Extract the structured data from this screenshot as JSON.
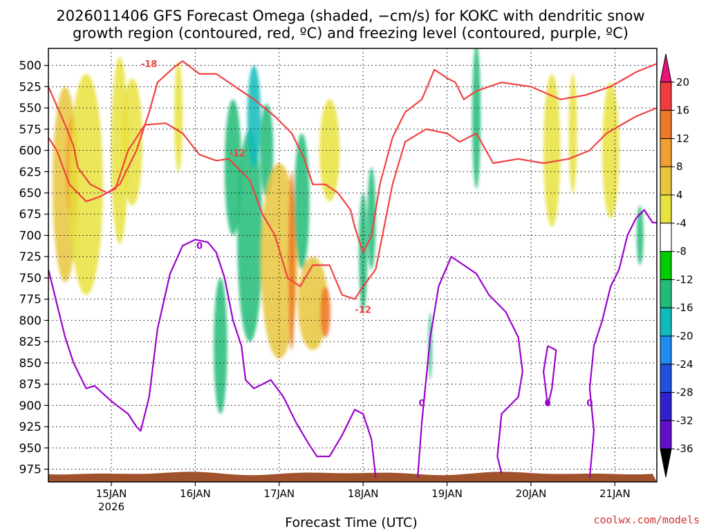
{
  "chart_data": {
    "type": "heatmap",
    "title_lines": [
      "2026011406 GFS Forecast Omega (shaded, −cm/s) for KOKC with dendritic snow",
      "growth region (contoured, red, ºC) and freezing level (contoured, purple, ºC)"
    ],
    "xlabel": "Forecast Time (UTC)",
    "ylabel": "",
    "credit": "coolwx.com/models",
    "x_range_days": [
      0,
      7.25
    ],
    "x_ticks": [
      {
        "day": 0.75,
        "label": "15JAN",
        "sublabel": "2026"
      },
      {
        "day": 1.75,
        "label": "16JAN",
        "sublabel": ""
      },
      {
        "day": 2.75,
        "label": "17JAN",
        "sublabel": ""
      },
      {
        "day": 3.75,
        "label": "18JAN",
        "sublabel": ""
      },
      {
        "day": 4.75,
        "label": "19JAN",
        "sublabel": ""
      },
      {
        "day": 5.75,
        "label": "20JAN",
        "sublabel": ""
      },
      {
        "day": 6.75,
        "label": "21JAN",
        "sublabel": ""
      }
    ],
    "y_range_hpa": [
      480,
      990
    ],
    "y_ticks": [
      500,
      525,
      550,
      575,
      600,
      625,
      650,
      675,
      700,
      725,
      750,
      775,
      800,
      825,
      850,
      875,
      900,
      925,
      950,
      975
    ],
    "grid": true,
    "colorbar": {
      "levels": [
        20,
        16,
        12,
        8,
        4,
        -4,
        -8,
        -12,
        -16,
        -20,
        -24,
        -28,
        -32,
        -36
      ],
      "colors": [
        "#e8127a",
        "#f03c3c",
        "#f07828",
        "#f0a030",
        "#e8c63c",
        "#e8e23c",
        "#ffffff",
        "#00cc00",
        "#22bb77",
        "#11bbbb",
        "#1e8cf0",
        "#2050e0",
        "#3020d0",
        "#6010c8",
        "#9a00cc",
        "#a0a0a0",
        "#000000"
      ]
    },
    "omega_blobs": [
      {
        "day": 0.2,
        "p": 640,
        "dd": 0.15,
        "dp": 230,
        "level": 8
      },
      {
        "day": 0.28,
        "p": 620,
        "dd": 0.07,
        "dp": 120,
        "level": 12
      },
      {
        "day": 0.45,
        "p": 640,
        "dd": 0.2,
        "dp": 260,
        "level": 4
      },
      {
        "day": 0.85,
        "p": 600,
        "dd": 0.1,
        "dp": 220,
        "level": 4
      },
      {
        "day": 1.0,
        "p": 590,
        "dd": 0.12,
        "dp": 150,
        "level": 4
      },
      {
        "day": 1.55,
        "p": 560,
        "dd": 0.05,
        "dp": 130,
        "level": 4
      },
      {
        "day": 2.05,
        "p": 830,
        "dd": 0.08,
        "dp": 160,
        "level": -8
      },
      {
        "day": 2.2,
        "p": 620,
        "dd": 0.1,
        "dp": 160,
        "level": -8
      },
      {
        "day": 2.4,
        "p": 700,
        "dd": 0.15,
        "dp": 250,
        "level": -8
      },
      {
        "day": 2.45,
        "p": 560,
        "dd": 0.08,
        "dp": 120,
        "level": -12
      },
      {
        "day": 2.6,
        "p": 600,
        "dd": 0.08,
        "dp": 110,
        "level": -8
      },
      {
        "day": 2.75,
        "p": 730,
        "dd": 0.22,
        "dp": 230,
        "level": 8
      },
      {
        "day": 2.9,
        "p": 730,
        "dd": 0.04,
        "dp": 210,
        "level": 16
      },
      {
        "day": 3.02,
        "p": 660,
        "dd": 0.09,
        "dp": 160,
        "level": -8
      },
      {
        "day": 3.15,
        "p": 780,
        "dd": 0.18,
        "dp": 110,
        "level": 8
      },
      {
        "day": 3.3,
        "p": 790,
        "dd": 0.06,
        "dp": 60,
        "level": 16
      },
      {
        "day": 3.35,
        "p": 600,
        "dd": 0.12,
        "dp": 120,
        "level": 4
      },
      {
        "day": 3.75,
        "p": 720,
        "dd": 0.05,
        "dp": 140,
        "level": -8
      },
      {
        "day": 3.85,
        "p": 680,
        "dd": 0.05,
        "dp": 120,
        "level": -8
      },
      {
        "day": 4.55,
        "p": 830,
        "dd": 0.02,
        "dp": 80,
        "level": -8
      },
      {
        "day": 5.1,
        "p": 560,
        "dd": 0.05,
        "dp": 170,
        "level": -8
      },
      {
        "day": 6.0,
        "p": 600,
        "dd": 0.1,
        "dp": 180,
        "level": 4
      },
      {
        "day": 6.25,
        "p": 580,
        "dd": 0.05,
        "dp": 140,
        "level": 4
      },
      {
        "day": 6.7,
        "p": 600,
        "dd": 0.1,
        "dp": 160,
        "level": 4
      },
      {
        "day": 7.05,
        "p": 700,
        "dd": 0.04,
        "dp": 70,
        "level": -8
      }
    ],
    "dsg_contours": [
      {
        "label": "-18",
        "label_at": {
          "day": 1.2,
          "p": 498
        },
        "points": [
          [
            0,
            525
          ],
          [
            0.2,
            570
          ],
          [
            0.3,
            595
          ],
          [
            0.35,
            620
          ],
          [
            0.5,
            640
          ],
          [
            0.7,
            650
          ],
          [
            0.85,
            640
          ],
          [
            1.05,
            600
          ],
          [
            1.2,
            555
          ],
          [
            1.3,
            520
          ],
          [
            1.5,
            502
          ],
          [
            1.6,
            495
          ],
          [
            1.8,
            510
          ],
          [
            2.0,
            510
          ],
          [
            2.15,
            520
          ],
          [
            2.45,
            540
          ],
          [
            2.7,
            560
          ],
          [
            2.9,
            580
          ],
          [
            3.05,
            610
          ],
          [
            3.15,
            640
          ],
          [
            3.3,
            640
          ],
          [
            3.45,
            650
          ],
          [
            3.6,
            670
          ],
          [
            3.65,
            690
          ],
          [
            3.75,
            720
          ],
          [
            3.85,
            700
          ],
          [
            3.95,
            640
          ],
          [
            4.1,
            585
          ],
          [
            4.25,
            555
          ],
          [
            4.45,
            540
          ],
          [
            4.6,
            505
          ],
          [
            4.75,
            515
          ],
          [
            4.85,
            520
          ],
          [
            4.95,
            540
          ],
          [
            5.1,
            530
          ],
          [
            5.4,
            520
          ],
          [
            5.75,
            525
          ],
          [
            6.1,
            540
          ],
          [
            6.4,
            535
          ],
          [
            6.7,
            525
          ],
          [
            7.0,
            508
          ],
          [
            7.25,
            498
          ]
        ]
      },
      {
        "label": "-12",
        "label_at": {
          "day": 2.25,
          "p": 603
        },
        "points": [
          [
            0,
            585
          ],
          [
            0.1,
            600
          ],
          [
            0.25,
            640
          ],
          [
            0.45,
            660
          ],
          [
            0.6,
            655
          ],
          [
            0.8,
            645
          ],
          [
            0.95,
            600
          ],
          [
            1.15,
            570
          ],
          [
            1.4,
            568
          ],
          [
            1.6,
            580
          ],
          [
            1.8,
            605
          ],
          [
            2.0,
            612
          ],
          [
            2.15,
            610
          ],
          [
            2.4,
            635
          ],
          [
            2.55,
            675
          ],
          [
            2.7,
            700
          ],
          [
            2.85,
            750
          ],
          [
            3.0,
            760
          ],
          [
            3.15,
            735
          ],
          [
            3.35,
            735
          ],
          [
            3.5,
            770
          ],
          [
            3.65,
            775
          ],
          [
            3.75,
            760
          ],
          [
            3.9,
            740
          ],
          [
            4.1,
            640
          ],
          [
            4.25,
            590
          ],
          [
            4.5,
            575
          ],
          [
            4.75,
            580
          ],
          [
            4.9,
            590
          ],
          [
            5.1,
            580
          ],
          [
            5.3,
            615
          ],
          [
            5.6,
            610
          ],
          [
            5.9,
            615
          ],
          [
            6.2,
            610
          ],
          [
            6.45,
            600
          ],
          [
            6.65,
            580
          ],
          [
            7.0,
            560
          ],
          [
            7.25,
            550
          ]
        ]
      },
      {
        "label": "-12",
        "label_at": {
          "day": 3.75,
          "p": 787
        },
        "points": []
      }
    ],
    "freeze_contours": [
      {
        "label": "0",
        "label_at": {
          "day": 1.8,
          "p": 712
        },
        "points": [
          [
            0,
            740
          ],
          [
            0.1,
            780
          ],
          [
            0.2,
            820
          ],
          [
            0.3,
            850
          ],
          [
            0.45,
            880
          ],
          [
            0.55,
            877
          ],
          [
            0.75,
            895
          ],
          [
            0.95,
            910
          ],
          [
            1.05,
            925
          ],
          [
            1.1,
            930
          ],
          [
            1.2,
            890
          ],
          [
            1.3,
            810
          ],
          [
            1.45,
            745
          ],
          [
            1.6,
            712
          ],
          [
            1.75,
            705
          ],
          [
            1.9,
            708
          ],
          [
            2.0,
            720
          ],
          [
            2.1,
            750
          ],
          [
            2.2,
            800
          ],
          [
            2.3,
            830
          ],
          [
            2.35,
            870
          ],
          [
            2.45,
            880
          ],
          [
            2.65,
            870
          ],
          [
            2.8,
            890
          ],
          [
            2.95,
            920
          ],
          [
            3.1,
            945
          ],
          [
            3.2,
            960
          ],
          [
            3.35,
            960
          ],
          [
            3.5,
            935
          ],
          [
            3.65,
            905
          ],
          [
            3.75,
            910
          ],
          [
            3.85,
            940
          ],
          [
            3.9,
            985
          ]
        ]
      },
      {
        "label": "0",
        "label_at": {
          "day": 4.45,
          "p": 897
        },
        "points": [
          [
            4.4,
            985
          ],
          [
            4.45,
            920
          ],
          [
            4.5,
            870
          ],
          [
            4.55,
            820
          ],
          [
            4.65,
            760
          ],
          [
            4.8,
            725
          ],
          [
            4.95,
            735
          ],
          [
            5.1,
            745
          ],
          [
            5.25,
            770
          ],
          [
            5.45,
            790
          ],
          [
            5.6,
            820
          ],
          [
            5.65,
            860
          ],
          [
            5.6,
            890
          ],
          [
            5.5,
            900
          ],
          [
            5.4,
            910
          ],
          [
            5.35,
            960
          ],
          [
            5.4,
            980
          ]
        ]
      },
      {
        "label": "0",
        "label_at": {
          "day": 5.95,
          "p": 897
        },
        "points": [
          [
            5.95,
            830
          ],
          [
            6.05,
            835
          ],
          [
            6.0,
            880
          ],
          [
            5.95,
            900
          ],
          [
            5.9,
            860
          ],
          [
            5.95,
            830
          ]
        ]
      },
      {
        "label": "0",
        "label_at": {
          "day": 6.45,
          "p": 897
        },
        "points": [
          [
            6.45,
            985
          ],
          [
            6.5,
            930
          ],
          [
            6.45,
            880
          ],
          [
            6.5,
            830
          ],
          [
            6.6,
            800
          ],
          [
            6.7,
            760
          ],
          [
            6.8,
            740
          ],
          [
            6.9,
            700
          ],
          [
            7.0,
            680
          ],
          [
            7.1,
            670
          ],
          [
            7.2,
            685
          ],
          [
            7.25,
            685
          ]
        ]
      }
    ],
    "ground_band_hpa": 980
  }
}
